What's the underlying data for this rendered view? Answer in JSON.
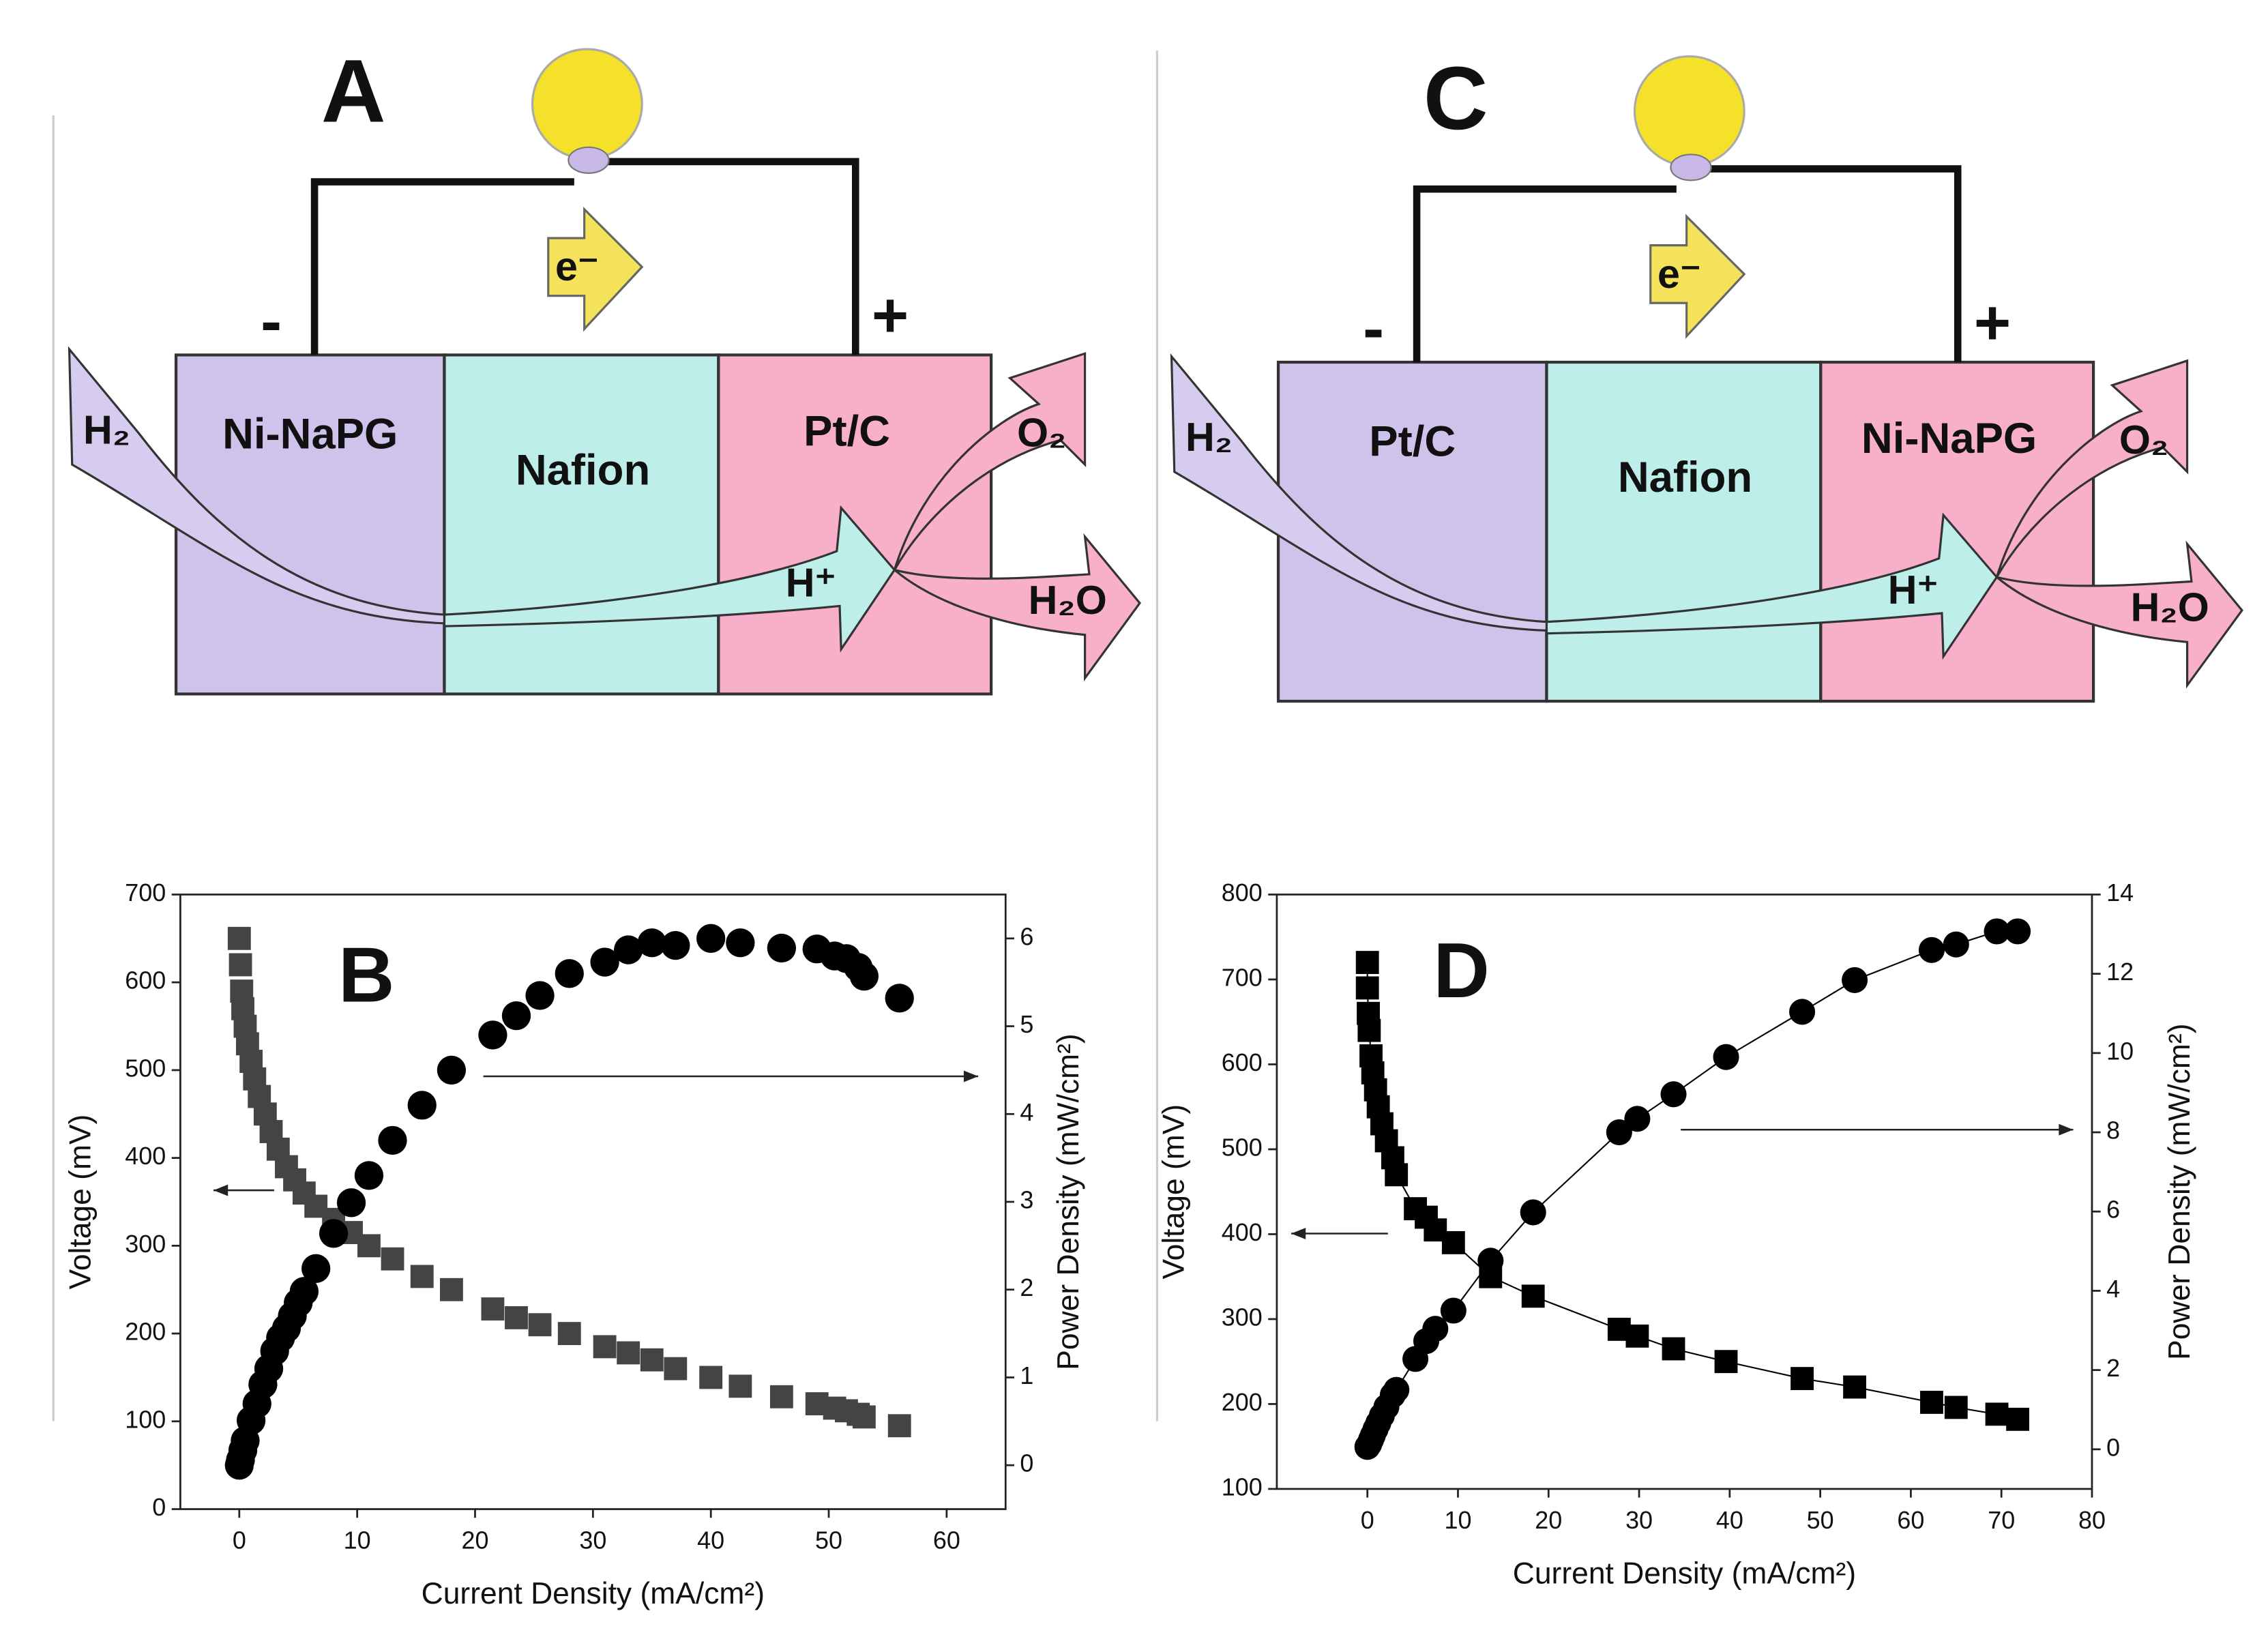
{
  "diagrams": [
    {
      "title": "A",
      "layers": [
        "Ni-NaPG",
        "Nafion",
        "Pt/C"
      ],
      "fuel": "H₂",
      "oxidant": "O₂",
      "product": "H₂O",
      "proton": "H⁺",
      "electron": "e⁻",
      "minus": "-",
      "plus": "+"
    },
    {
      "title": "C",
      "layers": [
        "Pt/C",
        "Nafion",
        "Ni-NaPG"
      ],
      "fuel": "H₂",
      "oxidant": "O₂",
      "product": "H₂O",
      "proton": "H⁺",
      "electron": "e⁻",
      "minus": "-",
      "plus": "+"
    }
  ],
  "chart_data": [
    {
      "type": "scatter",
      "label": "B",
      "xlabel": "Current Density (mA/cm²)",
      "ylabel": "Voltage (mV)",
      "y2label": "Power Density (mW/cm²)",
      "xlim": [
        -5,
        65
      ],
      "xticks": [
        0,
        10,
        20,
        30,
        40,
        50,
        60
      ],
      "ylim": [
        0,
        700
      ],
      "yticks": [
        0,
        100,
        200,
        300,
        400,
        500,
        600,
        700
      ],
      "y2lim": [
        -0.5,
        6.5
      ],
      "y2ticks": [
        0,
        1,
        2,
        3,
        4,
        5,
        6
      ],
      "series": [
        {
          "color": "#444444",
          "marker": "square",
          "x": [
            0,
            0.1,
            0.2,
            0.3,
            0.5,
            0.7,
            1,
            1.3,
            1.7,
            2.2,
            2.7,
            3.3,
            4,
            4.7,
            5.5,
            6.5,
            8,
            9.5,
            11,
            13,
            15.5,
            18,
            21.5,
            23.5,
            25.5,
            28,
            31,
            33,
            35,
            37,
            40,
            42.5,
            46,
            49,
            50.5,
            51.5,
            52.5,
            53,
            56
          ],
          "values": [
            650,
            620,
            590,
            570,
            550,
            530,
            510,
            490,
            470,
            450,
            430,
            410,
            390,
            375,
            360,
            345,
            330,
            315,
            300,
            285,
            265,
            250,
            228,
            218,
            210,
            200,
            185,
            178,
            170,
            160,
            150,
            140,
            128,
            120,
            115,
            112,
            108,
            105,
            95
          ]
        },
        {
          "color": "#000000",
          "marker": "circle",
          "axis": "y2",
          "x": [
            0,
            0.1,
            0.3,
            0.5,
            1,
            1.5,
            2,
            2.5,
            3,
            3.5,
            4,
            4.5,
            5,
            5.5,
            6.5,
            8,
            9.5,
            11,
            13,
            15.5,
            18,
            21.5,
            23.5,
            25.5,
            28,
            31,
            33,
            35,
            37,
            40,
            42.5,
            46,
            49,
            50.5,
            51.5,
            52.5,
            53,
            56
          ],
          "values": [
            0,
            0.06,
            0.17,
            0.28,
            0.51,
            0.7,
            0.92,
            1.1,
            1.3,
            1.45,
            1.56,
            1.7,
            1.85,
            1.98,
            2.24,
            2.64,
            2.99,
            3.3,
            3.7,
            4.1,
            4.5,
            4.9,
            5.12,
            5.35,
            5.6,
            5.73,
            5.87,
            5.95,
            5.92,
            6.0,
            5.95,
            5.89,
            5.88,
            5.8,
            5.77,
            5.67,
            5.57,
            5.32
          ]
        }
      ]
    },
    {
      "type": "scatter",
      "label": "D",
      "xlabel": "Current Density (mA/cm²)",
      "ylabel": "Voltage (mV)",
      "y2label": "Power Density (mW/cm²)",
      "xlim": [
        -10,
        80
      ],
      "xticks": [
        0,
        10,
        20,
        30,
        40,
        50,
        60,
        70,
        80
      ],
      "ylim": [
        100,
        800
      ],
      "yticks": [
        100,
        200,
        300,
        400,
        500,
        600,
        700,
        800
      ],
      "y2lim": [
        -1,
        14
      ],
      "y2ticks": [
        0,
        2,
        4,
        6,
        8,
        10,
        12,
        14
      ],
      "series": [
        {
          "color": "#000000",
          "marker": "square",
          "connect": true,
          "x": [
            0,
            0,
            0.1,
            0.2,
            0.4,
            0.6,
            0.9,
            1.2,
            1.6,
            2.1,
            2.8,
            3.2,
            5.3,
            6.5,
            7.5,
            9.5,
            13.6,
            18.3,
            27.8,
            29.8,
            33.8,
            39.6,
            48,
            53.8,
            62.3,
            65,
            69.5,
            71.8
          ],
          "values": [
            720,
            690,
            660,
            640,
            610,
            590,
            570,
            550,
            530,
            510,
            490,
            470,
            430,
            420,
            405,
            390,
            350,
            327,
            288,
            280,
            265,
            250,
            230,
            220,
            202,
            196,
            188,
            182
          ]
        },
        {
          "color": "#000000",
          "marker": "circle",
          "axis": "y2",
          "connect": true,
          "x": [
            0,
            0.2,
            0.4,
            0.6,
            0.9,
            1.2,
            1.6,
            2.1,
            2.8,
            3.2,
            5.3,
            6.5,
            7.5,
            9.5,
            13.6,
            18.3,
            27.8,
            29.8,
            33.8,
            39.6,
            48,
            53.8,
            62.3,
            65,
            69.5,
            71.8
          ],
          "values": [
            0.06,
            0.13,
            0.24,
            0.35,
            0.51,
            0.66,
            0.85,
            1.07,
            1.37,
            1.5,
            2.28,
            2.73,
            3.04,
            3.5,
            4.76,
            5.98,
            8.0,
            8.34,
            8.96,
            9.9,
            11.04,
            11.84,
            12.6,
            12.74,
            13.07,
            13.07
          ]
        }
      ]
    }
  ]
}
